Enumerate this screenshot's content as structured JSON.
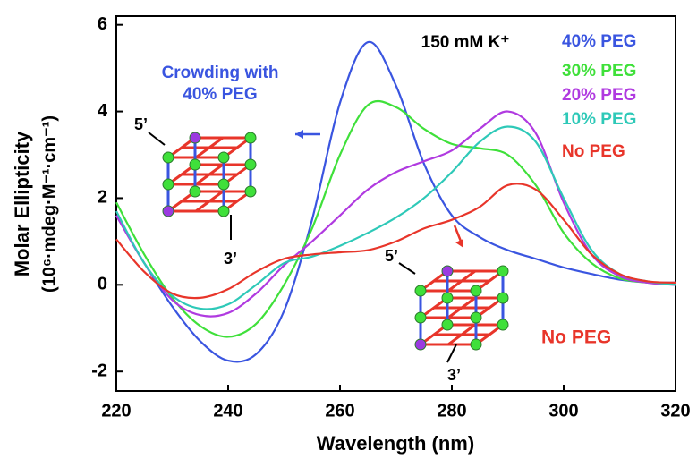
{
  "chart_data": {
    "type": "line",
    "annotation": "150 mM K⁺",
    "x_label": "Wavelength (nm)",
    "y_label": [
      "Molar Ellipticity",
      "(10⁶·mdeg·M⁻¹·cm⁻¹)"
    ],
    "xlim": [
      220,
      320
    ],
    "xticks": [
      220,
      240,
      260,
      280,
      300,
      320
    ],
    "ylim": [
      -2.45,
      6.2
    ],
    "yticks": [
      -2,
      0,
      2,
      4,
      6
    ],
    "legend": "top-right",
    "x": [
      220,
      225,
      230,
      235,
      240,
      245,
      250,
      255,
      260,
      265,
      270,
      275,
      280,
      285,
      290,
      295,
      300,
      305,
      310,
      315,
      320
    ],
    "series": [
      {
        "name": "40% PEG",
        "color": "#3a55e0",
        "values": [
          1.6,
          0.5,
          -0.5,
          -1.3,
          -1.75,
          -1.6,
          -0.6,
          1.5,
          4.2,
          5.6,
          4.6,
          2.8,
          1.6,
          1.1,
          0.8,
          0.6,
          0.4,
          0.25,
          0.12,
          0.06,
          0.05
        ]
      },
      {
        "name": "30% PEG",
        "color": "#3fe03a",
        "values": [
          1.9,
          0.7,
          -0.3,
          -0.95,
          -1.2,
          -0.9,
          0.0,
          1.3,
          3.0,
          4.15,
          4.1,
          3.6,
          3.25,
          3.15,
          3.0,
          2.3,
          1.2,
          0.5,
          0.15,
          0.05,
          0.0
        ]
      },
      {
        "name": "20% PEG",
        "color": "#b03ae0",
        "values": [
          1.6,
          0.5,
          -0.35,
          -0.7,
          -0.65,
          -0.2,
          0.45,
          1.0,
          1.6,
          2.2,
          2.6,
          2.85,
          3.1,
          3.6,
          4.0,
          3.5,
          1.9,
          0.7,
          0.2,
          0.05,
          0.0
        ]
      },
      {
        "name": "10% PEG",
        "color": "#2ec9b8",
        "values": [
          1.7,
          0.5,
          -0.25,
          -0.55,
          -0.45,
          0.0,
          0.5,
          0.65,
          0.9,
          1.2,
          1.55,
          2.0,
          2.6,
          3.3,
          3.65,
          3.3,
          2.0,
          0.8,
          0.25,
          0.08,
          0.0
        ]
      },
      {
        "name": "No PEG",
        "color": "#e8352a",
        "values": [
          1.05,
          0.3,
          -0.2,
          -0.3,
          -0.1,
          0.3,
          0.6,
          0.7,
          0.75,
          0.8,
          1.0,
          1.3,
          1.5,
          1.8,
          2.3,
          2.2,
          1.5,
          0.7,
          0.25,
          0.08,
          0.05
        ]
      }
    ],
    "inset_left": {
      "label": [
        "Crowding with",
        "40% PEG"
      ],
      "end5": "5’",
      "end3": "3’"
    },
    "inset_right": {
      "label": "No PEG",
      "end5": "5’",
      "end3": "3’"
    }
  }
}
